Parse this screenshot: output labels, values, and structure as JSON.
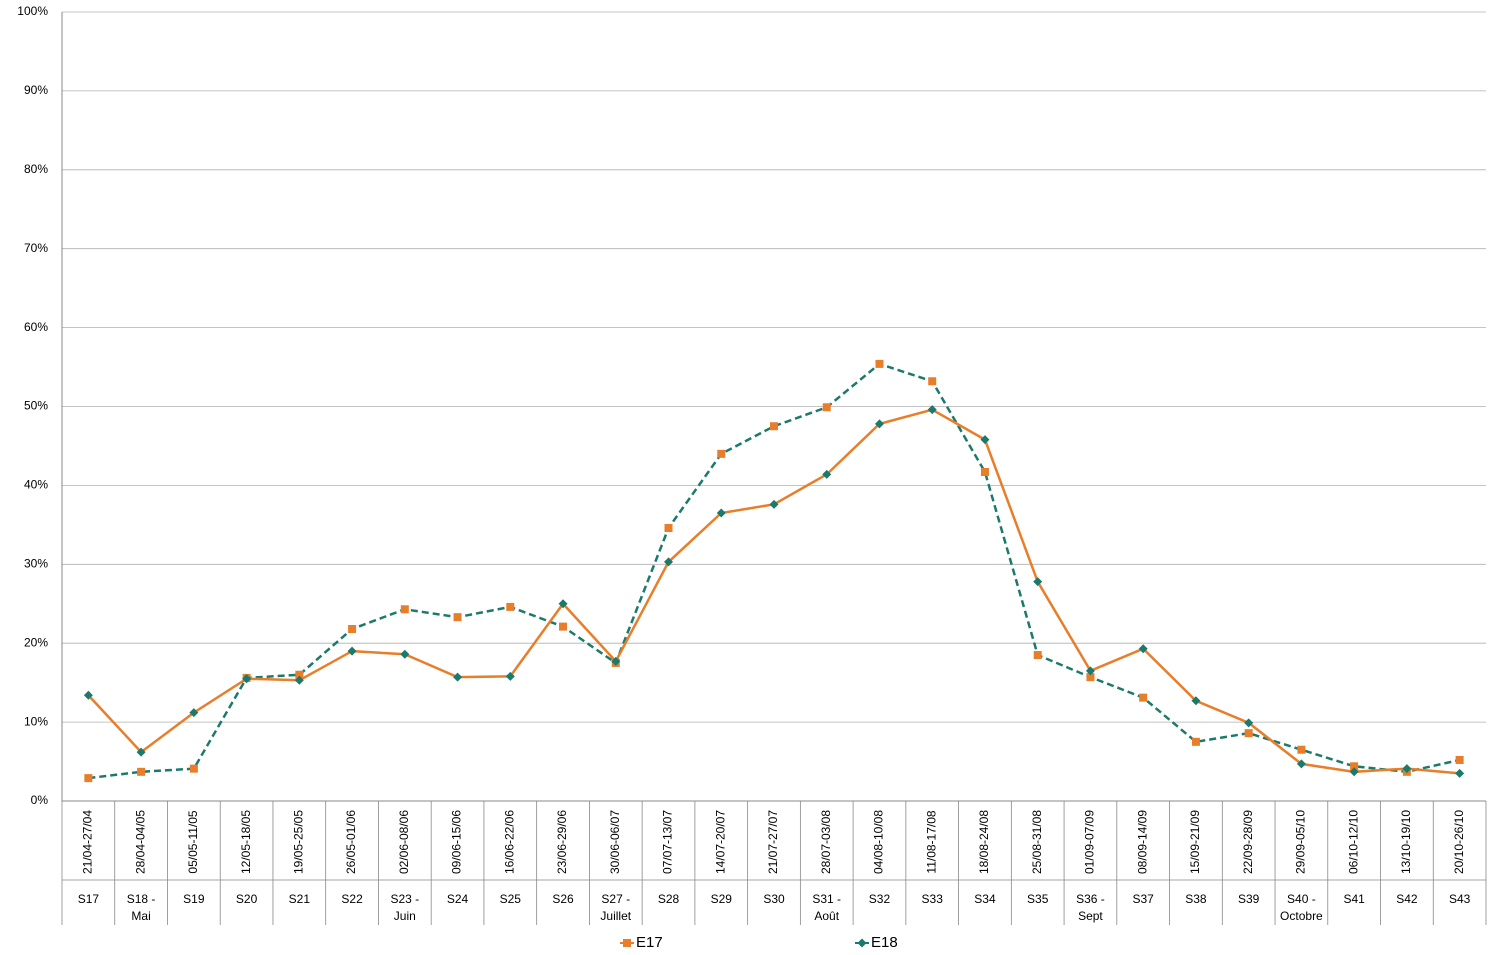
{
  "chart_data": {
    "type": "line",
    "categories": [
      "21/04-27/04",
      "28/04-04/05",
      "05/05-11/05",
      "12/05-18/05",
      "19/05-25/05",
      "26/05-01/06",
      "02/06-08/06",
      "09/06-15/06",
      "16/06-22/06",
      "23/06-29/06",
      "30/06-06/07",
      "07/07-13/07",
      "14/07-20/07",
      "21/07-27/07",
      "28/07-03/08",
      "04/08-10/08",
      "11/08-17/08",
      "18/08-24/08",
      "25/08-31/08",
      "01/09-07/09",
      "08/09-14/09",
      "15/09-21/09",
      "22/09-28/09",
      "29/09-05/10",
      "06/10-12/10",
      "13/10-19/10",
      "20/10-26/10"
    ],
    "weeks": [
      "S17",
      "S18 - Mai",
      "S19",
      "S20",
      "S21",
      "S22",
      "S23 - Juin",
      "S24",
      "S25",
      "S26",
      "S27 - Juillet",
      "S28",
      "S29",
      "S30",
      "S31 - Août",
      "S32",
      "S33",
      "S34",
      "S35",
      "S36 - Sept",
      "S37",
      "S38",
      "S39",
      "S40 - Octobre",
      "S41",
      "S42",
      "S43"
    ],
    "series": [
      {
        "name": "E17",
        "color": "#e87d2a",
        "marker": "square",
        "line_color": "#1b7a6b",
        "dashed": true,
        "values": [
          2.9,
          3.7,
          4.1,
          15.6,
          16.0,
          21.8,
          24.3,
          23.3,
          24.6,
          22.1,
          17.5,
          34.6,
          44.0,
          47.5,
          49.9,
          55.4,
          53.2,
          41.7,
          18.5,
          15.7,
          13.1,
          7.5,
          8.6,
          6.5,
          4.4,
          3.7,
          5.2
        ]
      },
      {
        "name": "E18",
        "color": "#1b7a6b",
        "marker": "diamond",
        "line_color": "#e87d2a",
        "dashed": false,
        "values": [
          13.4,
          6.2,
          11.2,
          15.5,
          15.3,
          19.0,
          18.6,
          15.7,
          15.8,
          25.0,
          17.7,
          30.3,
          36.5,
          37.6,
          41.4,
          47.8,
          49.6,
          45.8,
          27.8,
          16.5,
          19.3,
          12.7,
          9.9,
          4.7,
          3.7,
          4.1,
          3.5
        ]
      }
    ],
    "ylim": [
      0,
      100
    ],
    "yticks": [
      {
        "value": 0,
        "label": "0%"
      },
      {
        "value": 10,
        "label": "10%"
      },
      {
        "value": 20,
        "label": "20%"
      },
      {
        "value": 30,
        "label": "30%"
      },
      {
        "value": 40,
        "label": "40%"
      },
      {
        "value": 50,
        "label": "50%"
      },
      {
        "value": 60,
        "label": "60%"
      },
      {
        "value": 70,
        "label": "70%"
      },
      {
        "value": 80,
        "label": "80%"
      },
      {
        "value": 90,
        "label": "90%"
      },
      {
        "value": 100,
        "label": "100%"
      }
    ],
    "grid": true,
    "legend": "bottom"
  }
}
